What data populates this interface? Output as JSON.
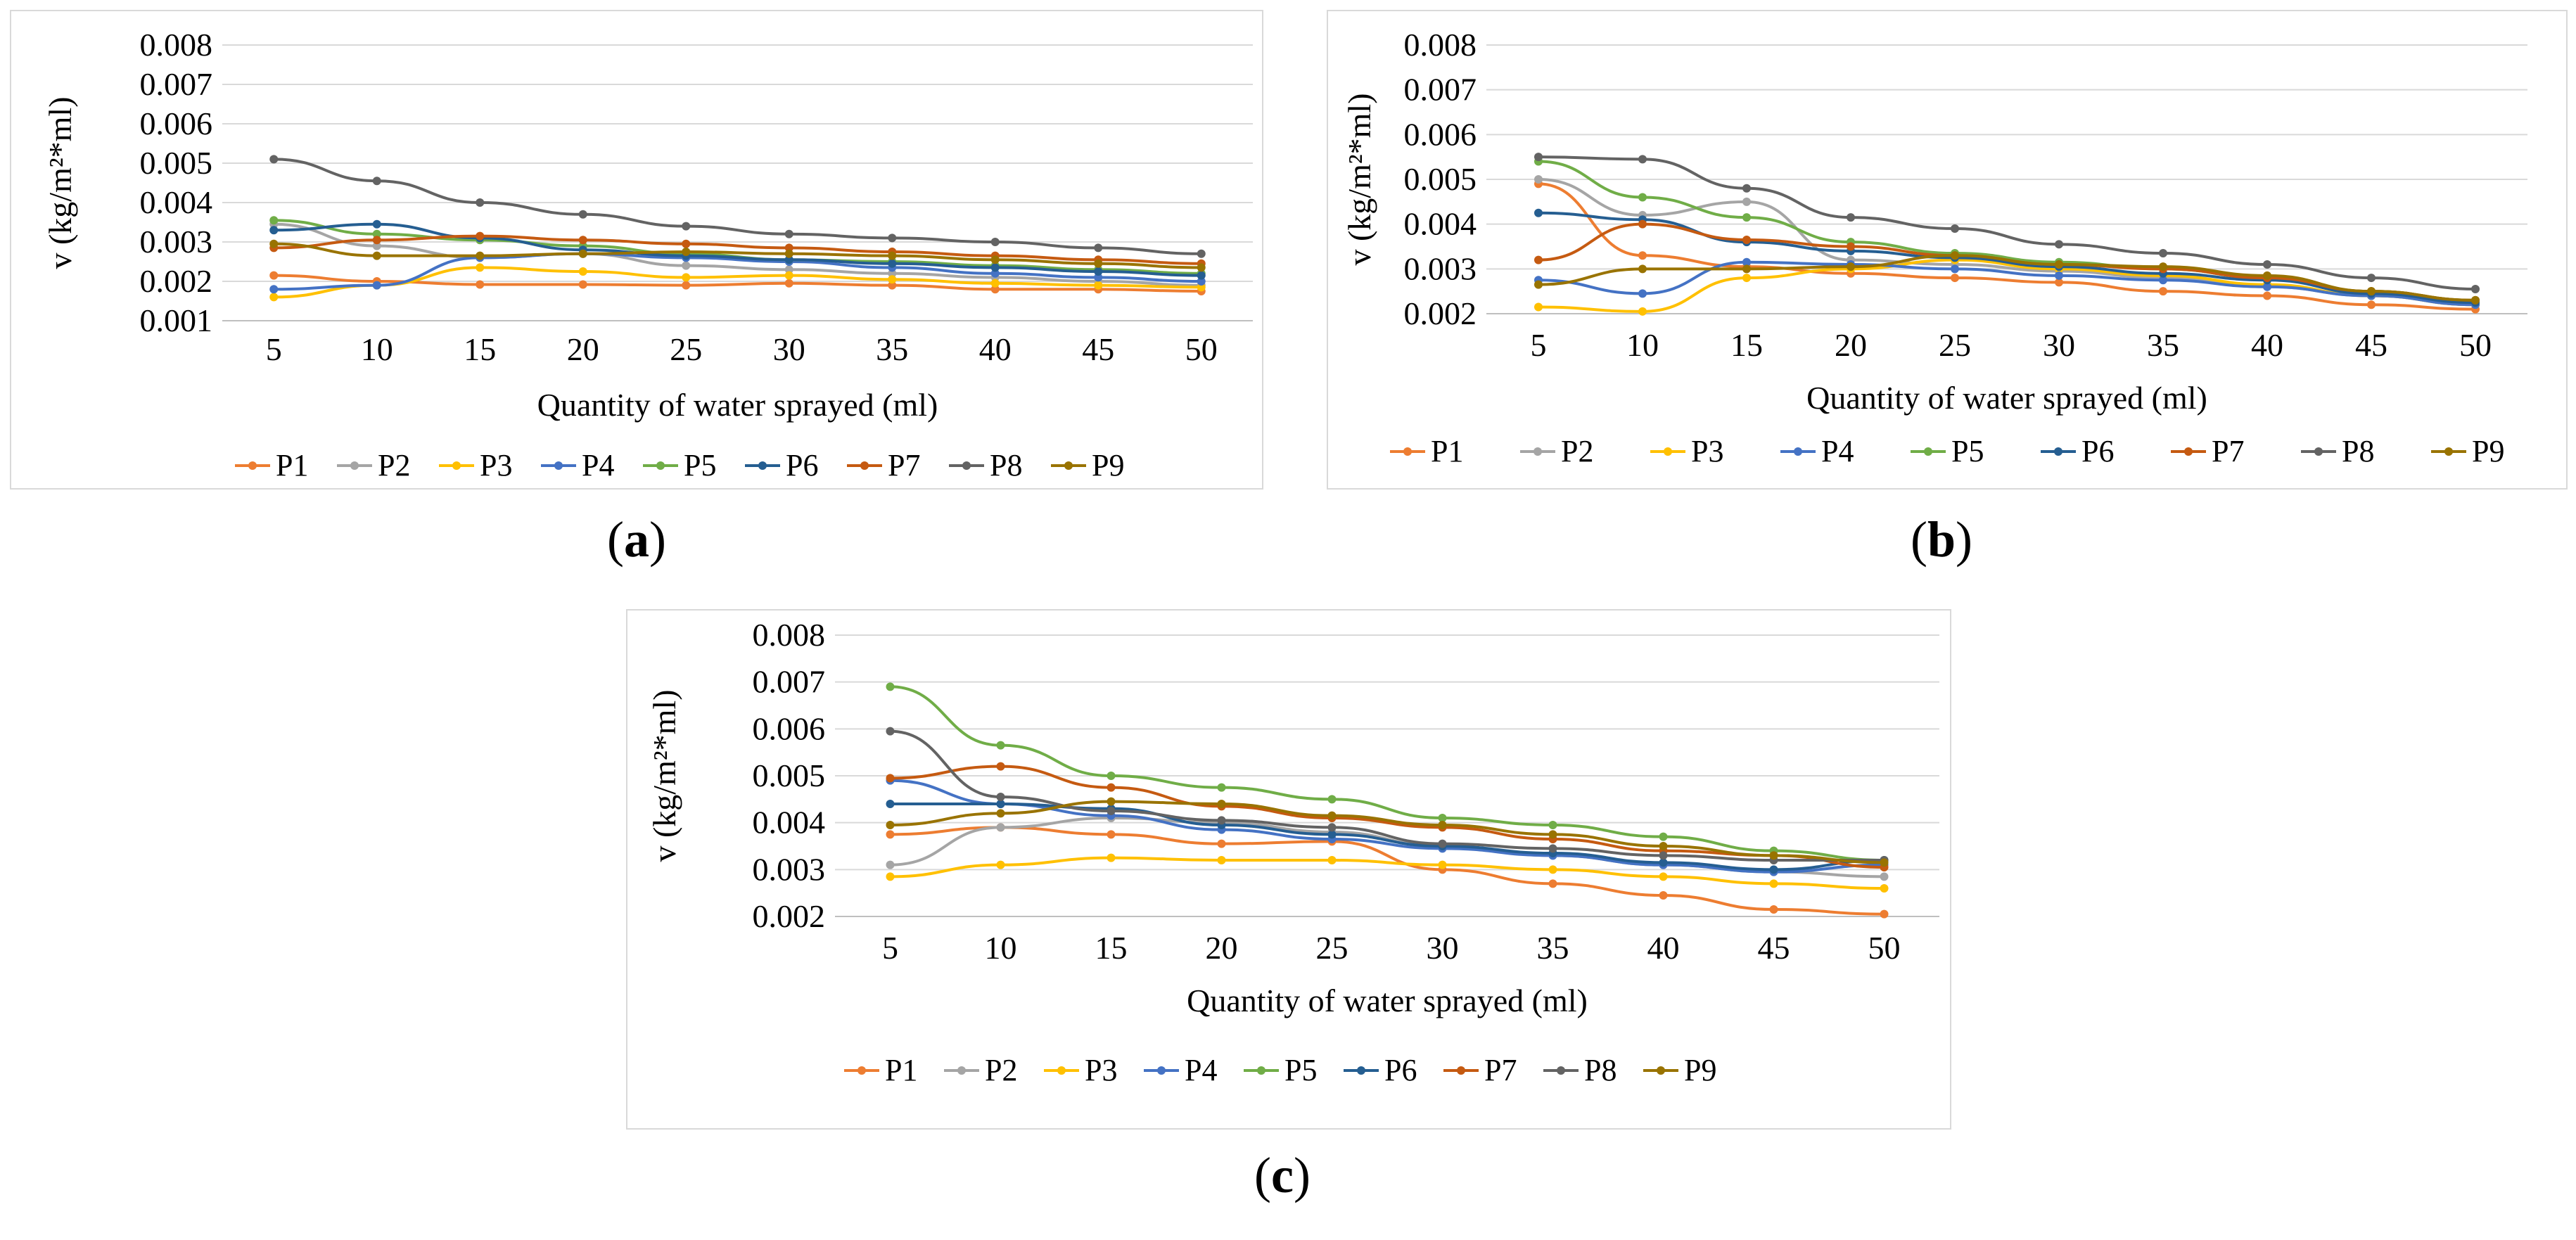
{
  "figure": {
    "captions": [
      {
        "open": "(",
        "letter": "a",
        "close": ")"
      },
      {
        "open": "(",
        "letter": "b",
        "close": ")"
      },
      {
        "open": "(",
        "letter": "c",
        "close": ")"
      }
    ]
  },
  "chart_data": [
    {
      "type": "line",
      "panel": "a",
      "title": "",
      "xlabel": "Quantity of water sprayed (ml)",
      "ylabel": "v (kg/m²*ml)",
      "categories": [
        5,
        10,
        15,
        20,
        25,
        30,
        35,
        40,
        45,
        50
      ],
      "ylim": [
        0.001,
        0.008
      ],
      "yticks": [
        "0.001",
        "0.002",
        "0.003",
        "0.004",
        "0.005",
        "0.006",
        "0.007",
        "0.008"
      ],
      "grid": true,
      "legend": "bottom",
      "series": [
        {
          "name": "P1",
          "color": "#ed7d31",
          "values": [
            0.00215,
            0.002,
            0.00192,
            0.00192,
            0.0019,
            0.00195,
            0.0019,
            0.0018,
            0.0018,
            0.00175
          ]
        },
        {
          "name": "P2",
          "color": "#a5a5a5",
          "values": [
            0.00345,
            0.0029,
            0.0026,
            0.0027,
            0.0024,
            0.0023,
            0.0022,
            0.0021,
            0.002,
            0.0019
          ]
        },
        {
          "name": "P3",
          "color": "#ffc000",
          "values": [
            0.0016,
            0.0019,
            0.00235,
            0.00225,
            0.0021,
            0.00215,
            0.00205,
            0.00195,
            0.0019,
            0.00185
          ]
        },
        {
          "name": "P4",
          "color": "#4472c4",
          "values": [
            0.0018,
            0.0019,
            0.0026,
            0.0027,
            0.0026,
            0.0025,
            0.00235,
            0.0022,
            0.0021,
            0.002
          ]
        },
        {
          "name": "P5",
          "color": "#70ad47",
          "values": [
            0.00355,
            0.0032,
            0.00305,
            0.0029,
            0.0027,
            0.00255,
            0.0025,
            0.0024,
            0.0023,
            0.0022
          ]
        },
        {
          "name": "P6",
          "color": "#255e91",
          "values": [
            0.0033,
            0.00345,
            0.0031,
            0.0028,
            0.00265,
            0.00255,
            0.00245,
            0.00235,
            0.00225,
            0.00215
          ]
        },
        {
          "name": "P7",
          "color": "#c55a11",
          "values": [
            0.00285,
            0.00305,
            0.00315,
            0.00305,
            0.00295,
            0.00285,
            0.00275,
            0.00265,
            0.00255,
            0.00245
          ]
        },
        {
          "name": "P8",
          "color": "#636363",
          "values": [
            0.0051,
            0.00455,
            0.004,
            0.0037,
            0.0034,
            0.0032,
            0.0031,
            0.003,
            0.00285,
            0.0027
          ]
        },
        {
          "name": "P9",
          "color": "#997300",
          "values": [
            0.00295,
            0.00265,
            0.00265,
            0.0027,
            0.00275,
            0.0027,
            0.00265,
            0.00255,
            0.00245,
            0.00235
          ]
        }
      ]
    },
    {
      "type": "line",
      "panel": "b",
      "title": "",
      "xlabel": "Quantity of water sprayed (ml)",
      "ylabel": "v (kg/m²*ml)",
      "categories": [
        5,
        10,
        15,
        20,
        25,
        30,
        35,
        40,
        45,
        50
      ],
      "ylim": [
        0.002,
        0.008
      ],
      "yticks": [
        "0.002",
        "0.003",
        "0.004",
        "0.005",
        "0.006",
        "0.007",
        "0.008"
      ],
      "grid": true,
      "legend": "bottom",
      "series": [
        {
          "name": "P1",
          "color": "#ed7d31",
          "values": [
            0.0049,
            0.0033,
            0.00305,
            0.0029,
            0.0028,
            0.0027,
            0.0025,
            0.0024,
            0.0022,
            0.0021
          ]
        },
        {
          "name": "P2",
          "color": "#a5a5a5",
          "values": [
            0.005,
            0.0042,
            0.0045,
            0.0032,
            0.0031,
            0.00295,
            0.0028,
            0.0026,
            0.0024,
            0.0022
          ]
        },
        {
          "name": "P3",
          "color": "#ffc000",
          "values": [
            0.00215,
            0.00205,
            0.0028,
            0.003,
            0.0032,
            0.003,
            0.00285,
            0.00265,
            0.0024,
            0.0022
          ]
        },
        {
          "name": "P4",
          "color": "#4472c4",
          "values": [
            0.00275,
            0.00245,
            0.00315,
            0.0031,
            0.003,
            0.00285,
            0.00275,
            0.0026,
            0.0024,
            0.0022
          ]
        },
        {
          "name": "P5",
          "color": "#70ad47",
          "values": [
            0.0054,
            0.0046,
            0.00415,
            0.0036,
            0.00335,
            0.00315,
            0.003,
            0.0028,
            0.0025,
            0.0023
          ]
        },
        {
          "name": "P6",
          "color": "#255e91",
          "values": [
            0.00425,
            0.0041,
            0.0036,
            0.0034,
            0.00325,
            0.00305,
            0.0029,
            0.00275,
            0.00245,
            0.00225
          ]
        },
        {
          "name": "P7",
          "color": "#c55a11",
          "values": [
            0.0032,
            0.004,
            0.00365,
            0.0035,
            0.0033,
            0.0031,
            0.003,
            0.0028,
            0.0025,
            0.0023
          ]
        },
        {
          "name": "P8",
          "color": "#636363",
          "values": [
            0.0055,
            0.00545,
            0.0048,
            0.00415,
            0.0039,
            0.00355,
            0.00335,
            0.0031,
            0.0028,
            0.00255
          ]
        },
        {
          "name": "P9",
          "color": "#997300",
          "values": [
            0.00265,
            0.003,
            0.003,
            0.00305,
            0.0033,
            0.0031,
            0.00305,
            0.00285,
            0.0025,
            0.0023
          ]
        }
      ]
    },
    {
      "type": "line",
      "panel": "c",
      "title": "",
      "xlabel": "Quantity of water sprayed (ml)",
      "ylabel": "v (kg/m²*ml)",
      "categories": [
        5,
        10,
        15,
        20,
        25,
        30,
        35,
        40,
        45,
        50
      ],
      "ylim": [
        0.002,
        0.008
      ],
      "yticks": [
        "0.002",
        "0.003",
        "0.004",
        "0.005",
        "0.006",
        "0.007",
        "0.008"
      ],
      "grid": true,
      "legend": "bottom",
      "series": [
        {
          "name": "P1",
          "color": "#ed7d31",
          "values": [
            0.00375,
            0.0039,
            0.00375,
            0.00355,
            0.0036,
            0.003,
            0.0027,
            0.00245,
            0.00215,
            0.00205
          ]
        },
        {
          "name": "P2",
          "color": "#a5a5a5",
          "values": [
            0.0031,
            0.0039,
            0.0041,
            0.004,
            0.0038,
            0.0035,
            0.0033,
            0.0031,
            0.00295,
            0.00285
          ]
        },
        {
          "name": "P3",
          "color": "#ffc000",
          "values": [
            0.00285,
            0.0031,
            0.00325,
            0.0032,
            0.0032,
            0.0031,
            0.003,
            0.00285,
            0.0027,
            0.0026
          ]
        },
        {
          "name": "P4",
          "color": "#4472c4",
          "values": [
            0.0049,
            0.0044,
            0.00415,
            0.00385,
            0.00365,
            0.00345,
            0.0033,
            0.0031,
            0.00295,
            0.0031
          ]
        },
        {
          "name": "P5",
          "color": "#70ad47",
          "values": [
            0.0069,
            0.00565,
            0.005,
            0.00475,
            0.0045,
            0.0041,
            0.00395,
            0.0037,
            0.0034,
            0.0032
          ]
        },
        {
          "name": "P6",
          "color": "#255e91",
          "values": [
            0.0044,
            0.0044,
            0.0043,
            0.00395,
            0.00375,
            0.0035,
            0.00335,
            0.00315,
            0.003,
            0.0032
          ]
        },
        {
          "name": "P7",
          "color": "#c55a11",
          "values": [
            0.00495,
            0.0052,
            0.00475,
            0.00435,
            0.0041,
            0.0039,
            0.00365,
            0.0034,
            0.0033,
            0.00305
          ]
        },
        {
          "name": "P8",
          "color": "#636363",
          "values": [
            0.00595,
            0.00455,
            0.00425,
            0.00405,
            0.0039,
            0.00355,
            0.00345,
            0.0033,
            0.0032,
            0.0032
          ]
        },
        {
          "name": "P9",
          "color": "#997300",
          "values": [
            0.00395,
            0.0042,
            0.00445,
            0.0044,
            0.00415,
            0.00395,
            0.00375,
            0.0035,
            0.0033,
            0.00315
          ]
        }
      ]
    }
  ]
}
